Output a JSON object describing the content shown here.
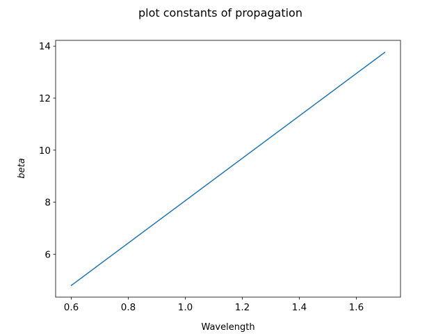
{
  "chart_data": {
    "type": "line",
    "title": "plot  constants of propagation",
    "xlabel": "Wavelength",
    "ylabel": "beta",
    "xlim": [
      0.545,
      1.755
    ],
    "ylim": [
      4.35,
      14.22
    ],
    "grid": false,
    "x_ticks": [
      0.6,
      0.8,
      1.0,
      1.2,
      1.4,
      1.6
    ],
    "x_tick_labels": [
      "0.6",
      "0.8",
      "1.0",
      "1.2",
      "1.4",
      "1.6"
    ],
    "y_ticks": [
      6,
      8,
      10,
      12,
      14
    ],
    "y_tick_labels": [
      "6",
      "8",
      "10",
      "12",
      "14"
    ],
    "series": [
      {
        "name": "beta",
        "color": "#1f77b4",
        "x": [
          0.6,
          1.7
        ],
        "y": [
          4.8,
          13.76
        ]
      }
    ]
  }
}
